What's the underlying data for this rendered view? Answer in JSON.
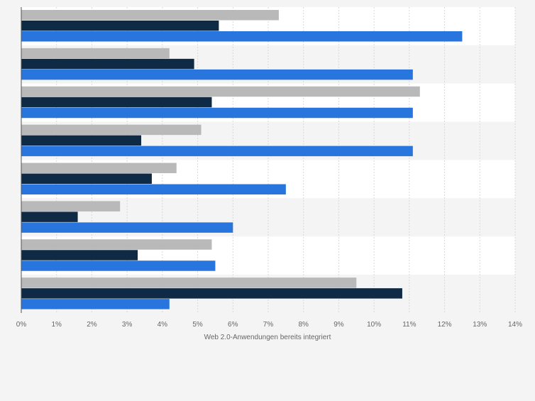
{
  "chart_data": {
    "type": "bar",
    "orientation": "horizontal",
    "title": "",
    "xlabel": "Web 2.0-Anwendungen bereits integriert",
    "ylabel": "",
    "xlim": [
      0,
      14
    ],
    "grid": true,
    "legend": "none",
    "x_tick_labels": [
      "0%",
      "1%",
      "2%",
      "3%",
      "4%",
      "5%",
      "6%",
      "7%",
      "8%",
      "9%",
      "10%",
      "11%",
      "12%",
      "13%",
      "14%"
    ],
    "categories": [
      "",
      "",
      "",
      "",
      "",
      "",
      "",
      ""
    ],
    "series": [
      {
        "name": "",
        "color": "#b9b9b9",
        "values": [
          7.3,
          4.2,
          11.3,
          5.1,
          4.4,
          2.8,
          5.4,
          9.5
        ]
      },
      {
        "name": "",
        "color": "#0f2a44",
        "values": [
          5.6,
          4.9,
          5.4,
          3.4,
          3.7,
          1.6,
          3.3,
          10.8
        ]
      },
      {
        "name": "",
        "color": "#2876dd",
        "values": [
          12.5,
          11.1,
          11.1,
          11.1,
          7.5,
          6.0,
          5.5,
          4.2
        ]
      }
    ]
  }
}
